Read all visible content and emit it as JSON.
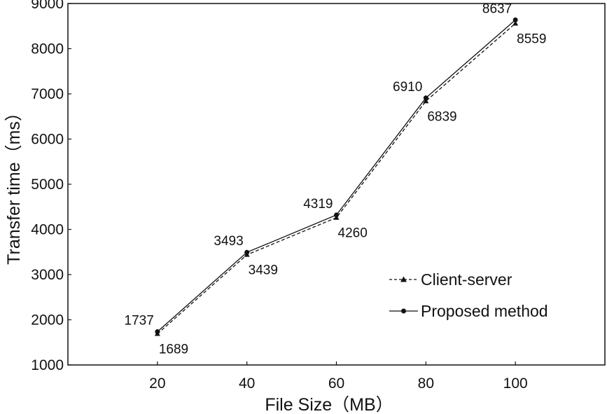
{
  "chart_data": {
    "type": "line",
    "xlabel": "File Size（MB）",
    "ylabel": "Transfer time（ms）",
    "x": [
      20,
      40,
      60,
      80,
      100
    ],
    "xlim": [
      0,
      120
    ],
    "ylim": [
      1000,
      9000
    ],
    "yticks": [
      1000,
      2000,
      3000,
      4000,
      5000,
      6000,
      7000,
      8000,
      9000
    ],
    "grid": false,
    "legend_position": "bottom-right",
    "series": [
      {
        "name": "Client-server",
        "values": [
          1689,
          3439,
          4260,
          6839,
          8559
        ],
        "line_style": "dashed",
        "marker": "triangle",
        "color": "#111111"
      },
      {
        "name": "Proposed method",
        "values": [
          1737,
          3493,
          4319,
          6910,
          8637
        ],
        "line_style": "solid",
        "marker": "circle",
        "color": "#111111"
      }
    ]
  }
}
